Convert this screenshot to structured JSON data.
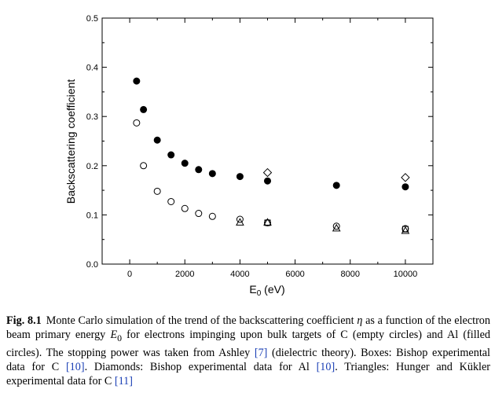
{
  "chart_data": {
    "type": "scatter",
    "xlabel": "E0 (eV)",
    "xlabel_parts": {
      "main": "E",
      "sub": "0",
      "rest": " (eV)"
    },
    "ylabel": "Backscattering coefficient",
    "xlim": [
      -1000,
      11000
    ],
    "ylim": [
      0.0,
      0.5
    ],
    "xticks": [
      0,
      2000,
      4000,
      6000,
      8000,
      10000
    ],
    "xtick_labels": [
      "0",
      "2000",
      "4000",
      "6000",
      "8000",
      "10000"
    ],
    "yticks": [
      0.0,
      0.1,
      0.2,
      0.3,
      0.4,
      0.5
    ],
    "ytick_labels": [
      "0.0",
      "0.1",
      "0.2",
      "0.3",
      "0.4",
      "0.5"
    ],
    "grid": false,
    "legend": "none",
    "series": [
      {
        "marker": "filled-circle",
        "x": [
          250,
          500,
          1000,
          1500,
          2000,
          2500,
          3000,
          4000,
          5000,
          7500,
          10000
        ],
        "y": [
          0.372,
          0.314,
          0.252,
          0.222,
          0.205,
          0.192,
          0.184,
          0.178,
          0.169,
          0.16,
          0.157
        ]
      },
      {
        "marker": "open-circle",
        "x": [
          250,
          500,
          1000,
          1500,
          2000,
          2500,
          3000,
          4000,
          5000,
          7500,
          10000
        ],
        "y": [
          0.287,
          0.2,
          0.148,
          0.127,
          0.113,
          0.103,
          0.097,
          0.091,
          0.084,
          0.077,
          0.072
        ]
      },
      {
        "marker": "open-diamond",
        "x": [
          5000,
          10000
        ],
        "y": [
          0.186,
          0.176
        ]
      },
      {
        "marker": "open-square",
        "x": [
          5000,
          10000
        ],
        "y": [
          0.084,
          0.071
        ]
      },
      {
        "marker": "open-triangle",
        "x": [
          4000,
          5000,
          7500,
          10000
        ],
        "y": [
          0.085,
          0.085,
          0.073,
          0.068
        ]
      }
    ]
  },
  "caption": {
    "label": "Fig. 8.1",
    "seg1": "Monte Carlo simulation of the trend of the backscattering coefficient ",
    "eta": "η",
    "seg2": " as a function of the electron beam primary energy ",
    "e0_main": "E",
    "e0_sub": "0",
    "seg3": " for electrons impinging upon bulk targets of C (empty circles) and Al (filled circles). The stopping power was taken from Ashley ",
    "ref7": "[7]",
    "seg4": " (dielectric theory). Boxes: Bishop experimental data for C ",
    "ref10a": "[10]",
    "seg5": ". Diamonds: Bishop experimental data for Al ",
    "ref10b": "[10]",
    "seg6": ". Triangles: Hunger and Kükler experimental data for C ",
    "ref11": "[11]"
  }
}
